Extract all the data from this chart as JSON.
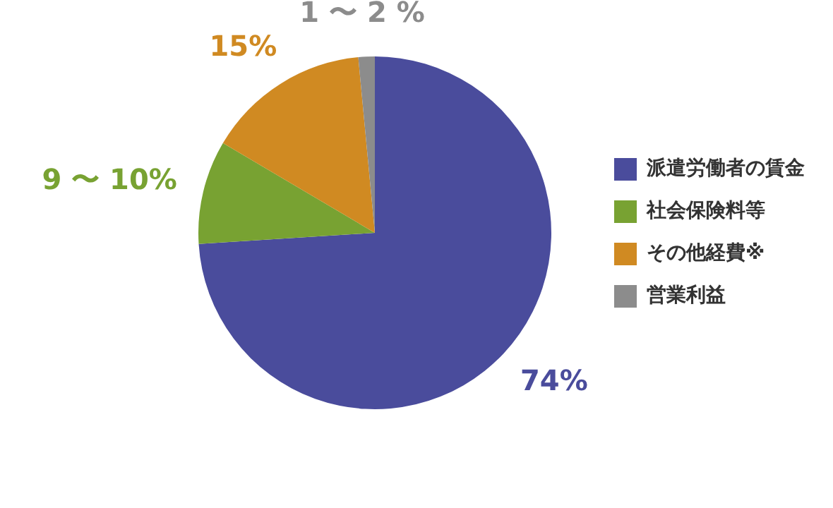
{
  "chart_data": {
    "type": "pie",
    "categories": [
      "派遣労働者の賃金",
      "社会保険料等",
      "その他経費※",
      "営業利益"
    ],
    "values": [
      74,
      9.5,
      15,
      1.5
    ],
    "colors": [
      "#4a4c9c",
      "#78a232",
      "#d08a22",
      "#8c8c8c"
    ],
    "value_labels": [
      "74%",
      "9 〜 10%",
      "15%",
      "1 〜 2 %"
    ],
    "legend": "right"
  }
}
